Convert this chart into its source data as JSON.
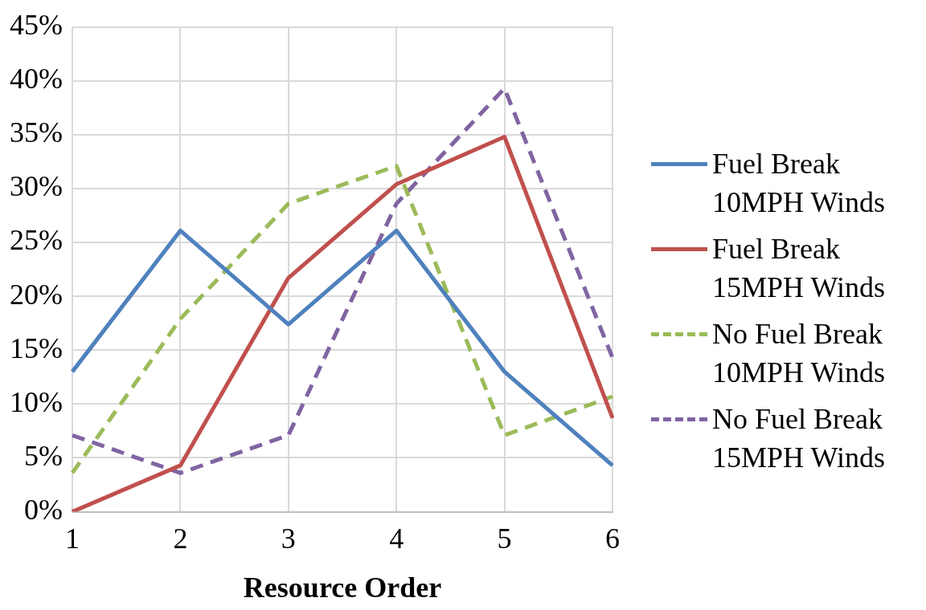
{
  "chart_data": {
    "type": "line",
    "xlabel": "Resource Order",
    "categories": [
      "1",
      "2",
      "3",
      "4",
      "5",
      "6"
    ],
    "ylim": [
      0,
      45
    ],
    "yticks": [
      {
        "value": 0,
        "label": "0%"
      },
      {
        "value": 5,
        "label": "5%"
      },
      {
        "value": 10,
        "label": "10%"
      },
      {
        "value": 15,
        "label": "15%"
      },
      {
        "value": 20,
        "label": "20%"
      },
      {
        "value": 25,
        "label": "25%"
      },
      {
        "value": 30,
        "label": "30%"
      },
      {
        "value": 35,
        "label": "35%"
      },
      {
        "value": 40,
        "label": "40%"
      },
      {
        "value": 45,
        "label": "45%"
      }
    ],
    "grid": true,
    "legend": "right",
    "marker": "none",
    "series": [
      {
        "name": "Fuel Break 10MPH Winds",
        "color": "#4f81bd",
        "line_style": "solid",
        "values": [
          13.0,
          26.1,
          17.4,
          26.1,
          13.0,
          4.3
        ]
      },
      {
        "name": "Fuel Break 15MPH Winds",
        "color": "#c0504d",
        "line_style": "solid",
        "values": [
          0,
          4.3,
          21.7,
          30.4,
          34.8,
          8.7
        ]
      },
      {
        "name": "No Fuel Break 10MPH Winds",
        "color": "#9bbb59",
        "line_style": "dashed",
        "values": [
          3.6,
          17.9,
          28.6,
          32.1,
          7.1,
          10.7
        ]
      },
      {
        "name": "No Fuel Break 15MPH Winds",
        "color": "#8064a2",
        "line_style": "dashed",
        "values": [
          7.1,
          3.6,
          7.1,
          28.6,
          39.3,
          14.3
        ]
      }
    ]
  }
}
